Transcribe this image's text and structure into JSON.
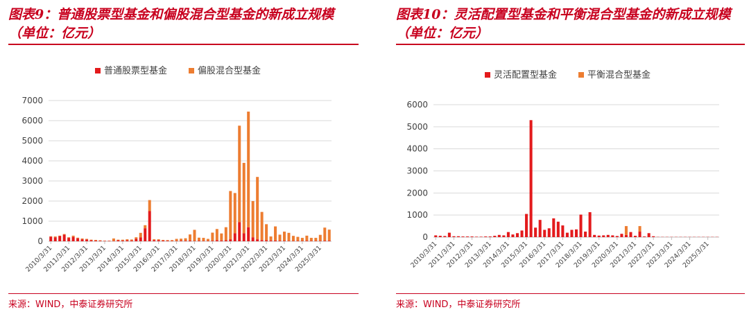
{
  "panels": [
    {
      "title": "图表9：普通股票型基金和偏股混合型基金的新成立规模（单位：亿元）",
      "source": "来源：WIND，中泰证券研究所",
      "chart_data": {
        "type": "bar",
        "stacked": true,
        "categories": [
          "2010/3/31",
          "2010/6/30",
          "2010/9/30",
          "2010/12/31",
          "2011/3/31",
          "2011/6/30",
          "2011/9/30",
          "2011/12/31",
          "2012/3/31",
          "2012/6/30",
          "2012/9/30",
          "2012/12/31",
          "2013/3/31",
          "2013/6/30",
          "2013/9/30",
          "2013/12/31",
          "2014/3/31",
          "2014/6/30",
          "2014/9/30",
          "2014/12/31",
          "2015/3/31",
          "2015/6/30",
          "2015/9/30",
          "2015/12/31",
          "2016/3/31",
          "2016/6/30",
          "2016/9/30",
          "2016/12/31",
          "2017/3/31",
          "2017/6/30",
          "2017/9/30",
          "2017/12/31",
          "2018/3/31",
          "2018/6/30",
          "2018/9/30",
          "2018/12/31",
          "2019/3/31",
          "2019/6/30",
          "2019/9/30",
          "2019/12/31",
          "2020/3/31",
          "2020/6/30",
          "2020/9/30",
          "2020/12/31",
          "2021/3/31",
          "2021/6/30",
          "2021/9/30",
          "2021/12/31",
          "2022/3/31",
          "2022/6/30",
          "2022/9/30",
          "2022/12/31",
          "2023/3/31",
          "2023/6/30",
          "2023/9/30",
          "2023/12/31",
          "2024/3/31",
          "2024/6/30",
          "2024/9/30",
          "2024/12/31",
          "2025/3/31",
          "2025/6/30",
          "2025/9/30"
        ],
        "tick_labels": [
          "2010/3/31",
          "2011/3/31",
          "2012/3/31",
          "2013/3/31",
          "2014/3/31",
          "2015/3/31",
          "2016/3/31",
          "2017/3/31",
          "2018/3/31",
          "2019/3/31",
          "2020/3/31",
          "2021/3/31",
          "2022/3/31",
          "2023/3/31",
          "2024/3/31",
          "2025/3/31"
        ],
        "series": [
          {
            "name": "普通股票型基金",
            "color": "#e31a1c",
            "values": [
              230,
              200,
              260,
              330,
              170,
              220,
              150,
              100,
              90,
              50,
              40,
              30,
              20,
              20,
              20,
              50,
              40,
              50,
              40,
              120,
              200,
              650,
              1500,
              60,
              60,
              40,
              30,
              20,
              20,
              30,
              30,
              40,
              20,
              30,
              20,
              20,
              30,
              60,
              40,
              50,
              100,
              400,
              950,
              400,
              700,
              200,
              100,
              60,
              50,
              40,
              40,
              30,
              30,
              20,
              20,
              20,
              20,
              30,
              20,
              20,
              20,
              30,
              30
            ]
          },
          {
            "name": "偏股混合型基金",
            "color": "#ed7d31",
            "values": [
              20,
              40,
              20,
              30,
              30,
              60,
              30,
              40,
              30,
              30,
              30,
              20,
              10,
              10,
              120,
              30,
              40,
              50,
              50,
              80,
              220,
              150,
              550,
              40,
              40,
              30,
              30,
              40,
              100,
              100,
              120,
              300,
              550,
              150,
              150,
              100,
              400,
              550,
              350,
              650,
              2400,
              2000,
              4800,
              3500,
              5750,
              1800,
              3100,
              1400,
              800,
              200,
              700,
              300,
              450,
              400,
              250,
              200,
              150,
              250,
              150,
              150,
              300,
              650,
              550
            ]
          }
        ],
        "ylim": [
          0,
          7000
        ],
        "yticks": [
          0,
          1000,
          2000,
          3000,
          4000,
          5000,
          6000,
          7000
        ],
        "legend_position": "top"
      }
    },
    {
      "title": "图表10：灵活配置型基金和平衡混合型基金的新成立规模（单位：亿元）",
      "source": "来源：WIND，中泰证券研究所",
      "chart_data": {
        "type": "bar",
        "stacked": true,
        "categories": [
          "2010/3/31",
          "2010/6/30",
          "2010/9/30",
          "2010/12/31",
          "2011/3/31",
          "2011/6/30",
          "2011/9/30",
          "2011/12/31",
          "2012/3/31",
          "2012/6/30",
          "2012/9/30",
          "2012/12/31",
          "2013/3/31",
          "2013/6/30",
          "2013/9/30",
          "2013/12/31",
          "2014/3/31",
          "2014/6/30",
          "2014/9/30",
          "2014/12/31",
          "2015/3/31",
          "2015/6/30",
          "2015/9/30",
          "2015/12/31",
          "2016/3/31",
          "2016/6/30",
          "2016/9/30",
          "2016/12/31",
          "2017/3/31",
          "2017/6/30",
          "2017/9/30",
          "2017/12/31",
          "2018/3/31",
          "2018/6/30",
          "2018/9/30",
          "2018/12/31",
          "2019/3/31",
          "2019/6/30",
          "2019/9/30",
          "2019/12/31",
          "2020/3/31",
          "2020/6/30",
          "2020/9/30",
          "2020/12/31",
          "2021/3/31",
          "2021/6/30",
          "2021/9/30",
          "2021/12/31",
          "2022/3/31",
          "2022/6/30",
          "2022/9/30",
          "2022/12/31",
          "2023/3/31",
          "2023/6/30",
          "2023/9/30",
          "2023/12/31",
          "2024/3/31",
          "2024/6/30",
          "2024/9/30",
          "2024/12/31",
          "2025/3/31",
          "2025/6/30",
          "2025/9/30"
        ],
        "tick_labels": [
          "2010/3/31",
          "2011/3/31",
          "2012/3/31",
          "2013/3/31",
          "2014/3/31",
          "2015/3/31",
          "2016/3/31",
          "2017/3/31",
          "2018/3/31",
          "2019/3/31",
          "2020/3/31",
          "2021/3/31",
          "2022/3/31",
          "2023/3/31",
          "2024/3/31",
          "2025/3/31"
        ],
        "series": [
          {
            "name": "灵活配置型基金",
            "color": "#e31a1c",
            "values": [
              80,
              60,
              50,
              200,
              40,
              40,
              30,
              30,
              30,
              20,
              20,
              30,
              30,
              60,
              100,
              80,
              230,
              120,
              180,
              300,
              1050,
              5300,
              430,
              780,
              330,
              400,
              850,
              700,
              530,
              200,
              330,
              350,
              1020,
              250,
              1130,
              100,
              70,
              80,
              100,
              80,
              50,
              150,
              100,
              230,
              60,
              250,
              30,
              180,
              40,
              10,
              10,
              10,
              10,
              10,
              10,
              10,
              10,
              10,
              10,
              10,
              10,
              10,
              10
            ]
          },
          {
            "name": "平衡混合型基金",
            "color": "#ed7d31",
            "values": [
              0,
              0,
              0,
              0,
              0,
              0,
              0,
              0,
              0,
              0,
              0,
              0,
              0,
              0,
              0,
              0,
              0,
              0,
              0,
              0,
              0,
              0,
              0,
              0,
              0,
              0,
              0,
              0,
              0,
              0,
              0,
              0,
              0,
              0,
              0,
              0,
              0,
              0,
              0,
              0,
              0,
              0,
              400,
              0,
              0,
              250,
              0,
              0,
              0,
              0,
              0,
              0,
              0,
              0,
              0,
              0,
              0,
              0,
              0,
              0,
              0,
              0,
              0
            ]
          }
        ],
        "ylim": [
          0,
          6000
        ],
        "yticks": [
          0,
          1000,
          2000,
          3000,
          4000,
          5000,
          6000
        ],
        "legend_position": "top"
      }
    }
  ]
}
